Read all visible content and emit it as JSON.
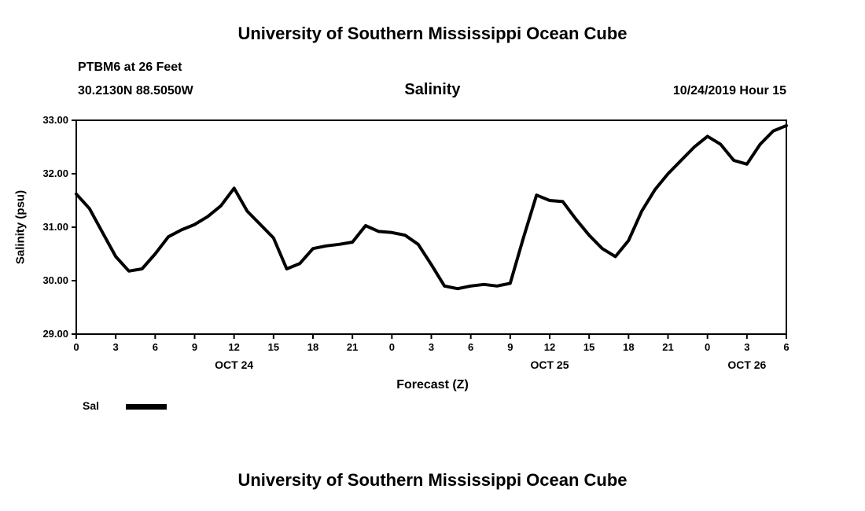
{
  "titles": {
    "top": "University of Southern Mississippi Ocean Cube",
    "bottom": "University of Southern Mississippi Ocean Cube"
  },
  "header": {
    "station": "PTBM6 at 26 Feet",
    "coordinates": "30.2130N 88.5050W",
    "chart_title": "Salinity",
    "run_time": "10/24/2019 Hour 15"
  },
  "legend": {
    "label": "Sal"
  },
  "chart_data": {
    "type": "line",
    "title": "Salinity",
    "xlabel": "Forecast (Z)",
    "ylabel": "Salinity (psu)",
    "xlim": [
      0,
      54
    ],
    "ylim": [
      29,
      33
    ],
    "grid": false,
    "legend_position": "below-left",
    "line_color": "#000000",
    "x_ticks": [
      0,
      3,
      6,
      9,
      12,
      15,
      18,
      21,
      24,
      27,
      30,
      33,
      36,
      39,
      42,
      45,
      48,
      51,
      54
    ],
    "x_tick_labels": [
      "0",
      "3",
      "6",
      "9",
      "12",
      "15",
      "18",
      "21",
      "0",
      "3",
      "6",
      "9",
      "12",
      "15",
      "18",
      "21",
      "0",
      "3",
      "6"
    ],
    "y_ticks": [
      29,
      30,
      31,
      32,
      33
    ],
    "y_tick_labels": [
      "29.00",
      "30.00",
      "31.00",
      "32.00",
      "33.00"
    ],
    "date_labels": [
      {
        "x": 12,
        "label": "OCT 24"
      },
      {
        "x": 36,
        "label": "OCT 25"
      },
      {
        "x": 51,
        "label": "OCT 26"
      }
    ],
    "series": [
      {
        "name": "Sal",
        "x": [
          0,
          1,
          2,
          3,
          4,
          5,
          6,
          7,
          8,
          9,
          10,
          11,
          12,
          13,
          14,
          15,
          16,
          17,
          18,
          19,
          20,
          21,
          22,
          23,
          24,
          25,
          26,
          27,
          28,
          29,
          30,
          31,
          32,
          33,
          34,
          35,
          36,
          37,
          38,
          39,
          40,
          41,
          42,
          43,
          44,
          45,
          46,
          47,
          48,
          49,
          50,
          51,
          52,
          53,
          54
        ],
        "values": [
          31.62,
          31.35,
          30.9,
          30.45,
          30.18,
          30.22,
          30.5,
          30.82,
          30.95,
          31.05,
          31.2,
          31.4,
          31.73,
          31.3,
          31.05,
          30.8,
          30.22,
          30.32,
          30.6,
          30.65,
          30.68,
          30.72,
          31.03,
          30.92,
          30.9,
          30.85,
          30.68,
          30.3,
          29.9,
          29.85,
          29.9,
          29.93,
          29.9,
          29.95,
          30.8,
          31.6,
          31.5,
          31.48,
          31.15,
          30.85,
          30.6,
          30.45,
          30.75,
          31.3,
          31.7,
          32.0,
          32.25,
          32.5,
          32.7,
          32.55,
          32.25,
          32.18,
          32.55,
          32.8,
          32.9
        ]
      }
    ]
  }
}
